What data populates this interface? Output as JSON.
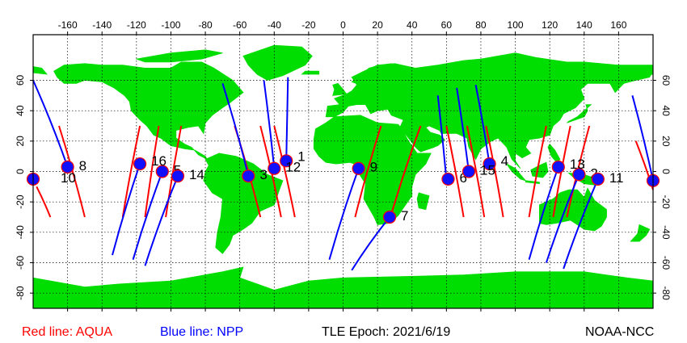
{
  "map": {
    "land_color": "#00dd00",
    "water_color": "#ffffff",
    "grid_color": "#000000",
    "x_ticks": [
      -160,
      -140,
      -120,
      -100,
      -80,
      -60,
      -40,
      -20,
      0,
      20,
      40,
      60,
      80,
      100,
      120,
      140,
      160
    ],
    "y_ticks": [
      60,
      40,
      20,
      0,
      -20,
      -40,
      -60,
      -80
    ],
    "lon_range": [
      -180,
      180
    ],
    "lat_range": [
      -90,
      90
    ]
  },
  "tracks": {
    "aqua_color": "#ff0000",
    "npp_color": "#0000ff",
    "aqua": [
      [
        [
          -178,
          -10
        ],
        [
          -170,
          -30
        ]
      ],
      [
        [
          -165,
          30
        ],
        [
          -150,
          -30
        ]
      ],
      [
        [
          -118,
          30
        ],
        [
          -128,
          -30
        ]
      ],
      [
        [
          -107,
          30
        ],
        [
          -115,
          -30
        ]
      ],
      [
        [
          -94,
          30
        ],
        [
          -103,
          -30
        ]
      ],
      [
        [
          -63,
          30
        ],
        [
          -48,
          -30
        ]
      ],
      [
        [
          -48,
          30
        ],
        [
          -36,
          -30
        ]
      ],
      [
        [
          -40,
          30
        ],
        [
          -28,
          -30
        ]
      ],
      [
        [
          22,
          30
        ],
        [
          7,
          -30
        ]
      ],
      [
        [
          45,
          30
        ],
        [
          27,
          -32
        ]
      ],
      [
        [
          60,
          30
        ],
        [
          70,
          -30
        ]
      ],
      [
        [
          72,
          30
        ],
        [
          82,
          -30
        ]
      ],
      [
        [
          83,
          30
        ],
        [
          93,
          -30
        ]
      ],
      [
        [
          118,
          30
        ],
        [
          108,
          -30
        ]
      ],
      [
        [
          132,
          30
        ],
        [
          122,
          -30
        ]
      ],
      [
        [
          143,
          30
        ],
        [
          130,
          -30
        ]
      ],
      [
        [
          170,
          20
        ],
        [
          180,
          -12
        ]
      ]
    ],
    "npp": [
      [
        [
          -180,
          60
        ],
        [
          -160,
          3
        ]
      ],
      [
        [
          -118,
          5
        ],
        [
          -134,
          -55
        ]
      ],
      [
        [
          -105,
          0
        ],
        [
          -122,
          -58
        ]
      ],
      [
        [
          -96,
          -3
        ],
        [
          -115,
          -62
        ]
      ],
      [
        [
          -70,
          58
        ],
        [
          -55,
          -3
        ]
      ],
      [
        [
          -46,
          60
        ],
        [
          -40,
          2
        ]
      ],
      [
        [
          -32,
          62
        ],
        [
          -33,
          7
        ]
      ],
      [
        [
          9,
          2
        ],
        [
          -8,
          -58
        ]
      ],
      [
        [
          27,
          -30
        ],
        [
          5,
          -65
        ]
      ],
      [
        [
          55,
          50
        ],
        [
          60,
          -5
        ]
      ],
      [
        [
          66,
          55
        ],
        [
          73,
          0
        ]
      ],
      [
        [
          77,
          57
        ],
        [
          85,
          5
        ]
      ],
      [
        [
          125,
          3
        ],
        [
          108,
          -58
        ]
      ],
      [
        [
          137,
          -2
        ],
        [
          118,
          -60
        ]
      ],
      [
        [
          148,
          -5
        ],
        [
          128,
          -64
        ]
      ],
      [
        [
          168,
          50
        ],
        [
          180,
          -6
        ]
      ]
    ]
  },
  "markers": [
    {
      "id": "1",
      "lon": -33,
      "lat": 7,
      "label": "1",
      "lx": 6,
      "ly": -6
    },
    {
      "id": "2",
      "lon": 137,
      "lat": -2,
      "label": "2",
      "lx": 6,
      "ly": -2
    },
    {
      "id": "3",
      "lon": -55,
      "lat": -3,
      "label": "3",
      "lx": 6,
      "ly": -2
    },
    {
      "id": "4",
      "lon": 85,
      "lat": 5,
      "label": "4",
      "lx": 6,
      "ly": -4
    },
    {
      "id": "5",
      "lon": -105,
      "lat": 0,
      "label": "5",
      "lx": 6,
      "ly": -2
    },
    {
      "id": "6",
      "lon": 61,
      "lat": -5,
      "label": "6",
      "lx": 6,
      "ly": -2
    },
    {
      "id": "7",
      "lon": 27,
      "lat": -30,
      "label": "7",
      "lx": 6,
      "ly": -2
    },
    {
      "id": "8",
      "lon": -160,
      "lat": 3,
      "label": "8",
      "lx": 6,
      "ly": -2
    },
    {
      "id": "9",
      "lon": 9,
      "lat": 2,
      "label": "9",
      "lx": 6,
      "ly": -2
    },
    {
      "id": "10",
      "lon": -180,
      "lat": -5,
      "label": "10",
      "lx": 26,
      "ly": -2
    },
    {
      "id": "11",
      "lon": 148,
      "lat": -5,
      "label": "11",
      "lx": 6,
      "ly": -2
    },
    {
      "id": "12",
      "lon": -40,
      "lat": 2,
      "label": "12",
      "lx": 6,
      "ly": -2
    },
    {
      "id": "13",
      "lon": 125,
      "lat": 3,
      "label": "13",
      "lx": 6,
      "ly": -4
    },
    {
      "id": "14",
      "lon": -96,
      "lat": -3,
      "label": "14",
      "lx": 6,
      "ly": -2
    },
    {
      "id": "15",
      "lon": 73,
      "lat": 0,
      "label": "15",
      "lx": 6,
      "ly": -2
    },
    {
      "id": "16",
      "lon": -118,
      "lat": 5,
      "label": "16",
      "lx": 6,
      "ly": -4
    },
    {
      "id": "17",
      "lon": 180,
      "lat": -6,
      "label": "",
      "lx": 0,
      "ly": 0
    }
  ],
  "footer": {
    "aqua_legend": "Red line: AQUA",
    "npp_legend": "Blue line: NPP",
    "epoch": "TLE Epoch: 2021/6/19",
    "credit": "NOAA-NCC"
  }
}
